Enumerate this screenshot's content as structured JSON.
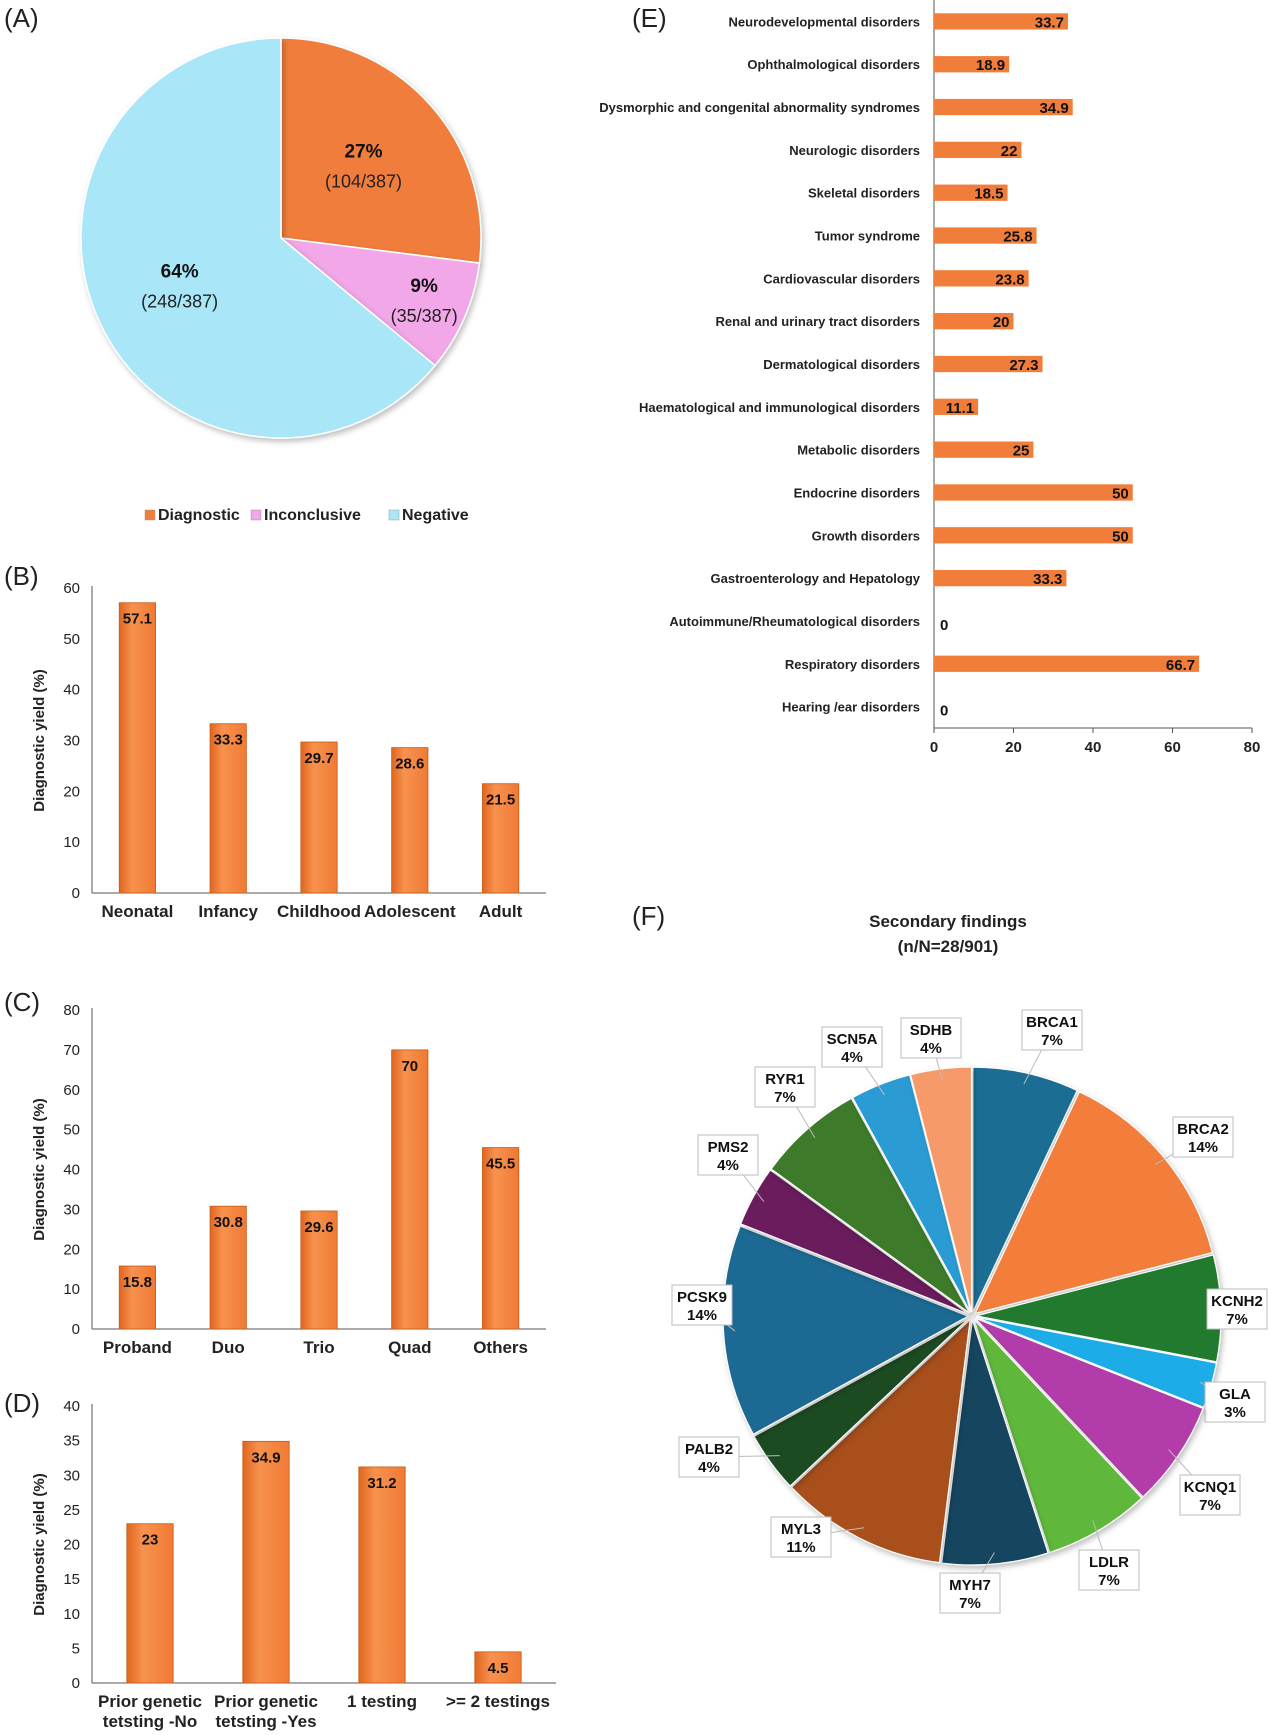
{
  "chart_data": [
    {
      "panel": "(A)",
      "type": "pie",
      "labels": [
        "Diagnostic",
        "Inconclusive",
        "Negative"
      ],
      "values": [
        27,
        9,
        64
      ],
      "slice_text": [
        {
          "pct": "27%",
          "frac": "(104/387)"
        },
        {
          "pct": "9%",
          "frac": "(35/387)"
        },
        {
          "pct": "64%",
          "frac": "(248/387)"
        }
      ],
      "colors": [
        "#F07D3A",
        "#F2A7E8",
        "#A8E6F8"
      ],
      "legend": "bottom"
    },
    {
      "panel": "(B)",
      "type": "bar",
      "categories": [
        "Neonatal",
        "Infancy",
        "Childhood",
        "Adolescent",
        "Adult"
      ],
      "values": [
        57.1,
        33.3,
        29.7,
        28.6,
        21.5
      ],
      "value_labels": [
        "57.1",
        "33.3",
        "29.7",
        "28.6",
        "21.5"
      ],
      "ylabel": "Diagnostic yield (%)",
      "ylim": [
        0,
        60
      ],
      "yticks": [
        "0",
        "10",
        "20",
        "30",
        "40",
        "50",
        "60"
      ]
    },
    {
      "panel": "(C)",
      "type": "bar",
      "categories": [
        "Proband",
        "Duo",
        "Trio",
        "Quad",
        "Others"
      ],
      "values": [
        15.8,
        30.8,
        29.6,
        70,
        45.5
      ],
      "value_labels": [
        "15.8",
        "30.8",
        "29.6",
        "70",
        "45.5"
      ],
      "ylabel": "Diagnostic yield (%)",
      "ylim": [
        0,
        80
      ],
      "yticks": [
        "0",
        "10",
        "20",
        "30",
        "40",
        "50",
        "60",
        "70",
        "80"
      ]
    },
    {
      "panel": "(D)",
      "type": "bar",
      "categories": [
        [
          "Prior genetic",
          "tetsting -No"
        ],
        [
          "Prior genetic",
          "tetsting -Yes"
        ],
        [
          "1 testing"
        ],
        [
          ">= 2 testings"
        ]
      ],
      "values": [
        23,
        34.9,
        31.2,
        4.5
      ],
      "value_labels": [
        "23",
        "34.9",
        "31.2",
        "4.5"
      ],
      "ylabel": "Diagnostic yield (%)",
      "ylim": [
        0,
        40
      ],
      "yticks": [
        "0",
        "5",
        "10",
        "15",
        "20",
        "25",
        "30",
        "35",
        "40"
      ]
    },
    {
      "panel": "(E)",
      "type": "bar",
      "orientation": "horizontal",
      "categories": [
        "Neurodevelopmental disorders",
        "Ophthalmological disorders",
        "Dysmorphic and congenital abnormality syndromes",
        "Neurologic disorders",
        "Skeletal disorders",
        "Tumor syndrome",
        "Cardiovascular disorders",
        "Renal and urinary tract disorders",
        "Dermatological disorders",
        "Haematological and immunological disorders",
        "Metabolic disorders",
        "Endocrine disorders",
        "Growth disorders",
        "Gastroenterology and Hepatology",
        "Autoimmune/Rheumatological disorders",
        "Respiratory disorders",
        "Hearing /ear disorders"
      ],
      "values": [
        33.7,
        18.9,
        34.9,
        22,
        18.5,
        25.8,
        23.8,
        20,
        27.3,
        11.1,
        25,
        50,
        50,
        33.3,
        0,
        66.7,
        0
      ],
      "value_labels": [
        "33.7",
        "18.9",
        "34.9",
        "22",
        "18.5",
        "25.8",
        "23.8",
        "20",
        "27.3",
        "11.1",
        "25",
        "50",
        "50",
        "33.3",
        "0",
        "66.7",
        "0"
      ],
      "xlim": [
        0,
        80
      ],
      "xticks": [
        "0",
        "20",
        "40",
        "60",
        "80"
      ]
    },
    {
      "panel": "(F)",
      "type": "pie",
      "title": [
        "Secondary findings",
        "(n/N=28/901)"
      ],
      "labels": [
        "BRCA1",
        "BRCA2",
        "KCNH2",
        "GLA",
        "KCNQ1",
        "LDLR",
        "MYH7",
        "MYL3",
        "PALB2",
        "PCSK9",
        "PMS2",
        "RYR1",
        "SCN5A",
        "SDHB"
      ],
      "values": [
        7,
        14,
        7,
        3,
        7,
        7,
        7,
        11,
        4,
        14,
        4,
        7,
        4,
        4
      ],
      "value_labels": [
        "7%",
        "14%",
        "7%",
        "3%",
        "7%",
        "7%",
        "7%",
        "11%",
        "4%",
        "14%",
        "4%",
        "7%",
        "4%",
        "4%"
      ],
      "colors": [
        "#1F6D94",
        "#F37D3A",
        "#227A2E",
        "#1AADE8",
        "#B23DAA",
        "#5FB83A",
        "#17455E",
        "#A8501B",
        "#1B4B23",
        "#1A6A94",
        "#6B1E5C",
        "#3D7A2A",
        "#2B9BD3",
        "#F79A6A"
      ]
    }
  ]
}
